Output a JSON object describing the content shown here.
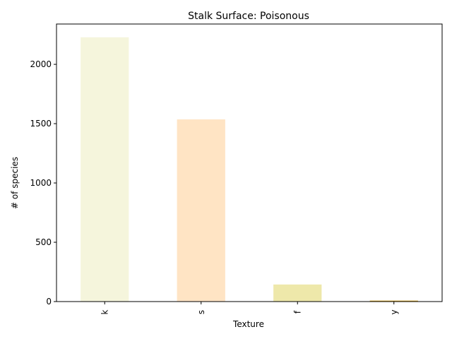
{
  "chart_data": {
    "type": "bar",
    "title": "Stalk Surface: Poisonous",
    "xlabel": "Texture",
    "ylabel": "# of species",
    "categories": [
      "k",
      "s",
      "f",
      "y"
    ],
    "values": [
      2228,
      1536,
      144,
      8
    ],
    "colors": [
      "#f5f5dc",
      "#ffe4c4",
      "#eee8aa",
      "#daa520"
    ],
    "ylim": [
      0,
      2340
    ],
    "yticks": [
      0,
      500,
      1000,
      1500,
      2000
    ],
    "grid": false,
    "legend": "none"
  }
}
